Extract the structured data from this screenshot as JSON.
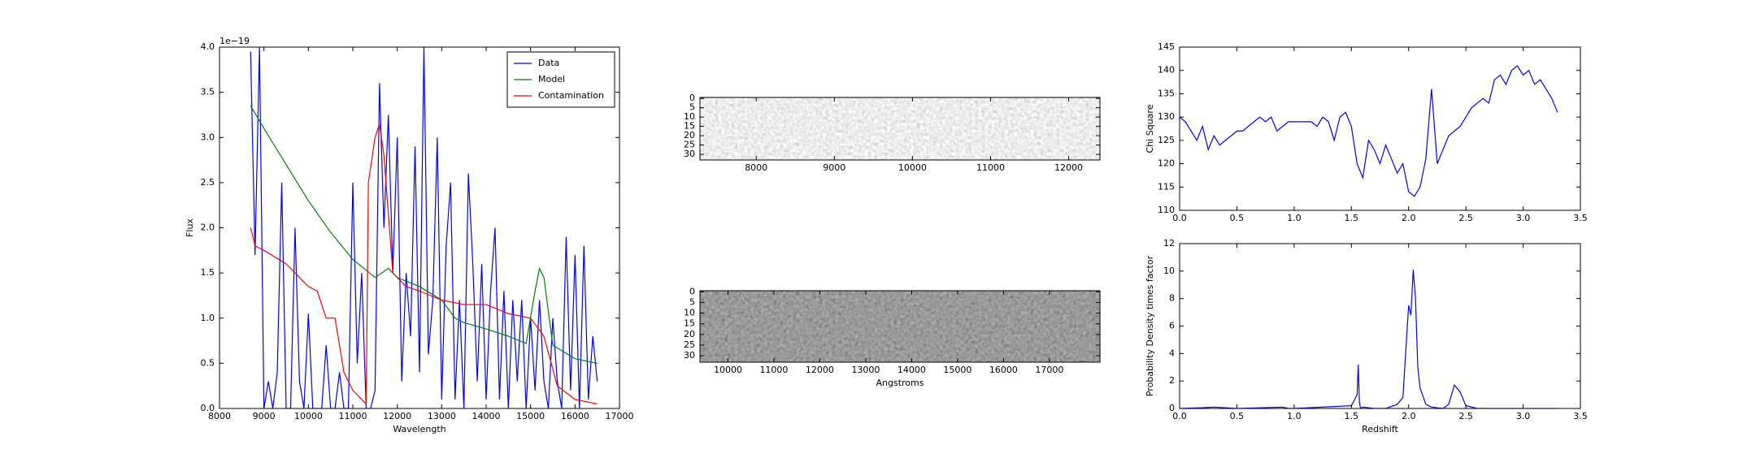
{
  "chart_data": [
    {
      "type": "line",
      "xlabel": "Wavelength",
      "ylabel": "Flux",
      "y_offset_label": "1e−19",
      "xlim": [
        8000,
        17000
      ],
      "xticks": [
        8000,
        9000,
        10000,
        11000,
        12000,
        13000,
        14000,
        15000,
        16000,
        17000
      ],
      "ylim": [
        0,
        4
      ],
      "yticks": [
        {
          "value": 0,
          "label": "0.0"
        },
        0.5,
        {
          "value": 1,
          "label": "1.0"
        },
        1.5,
        {
          "value": 2,
          "label": "2.0"
        },
        2.5,
        {
          "value": 3,
          "label": "3.0"
        },
        3.5,
        {
          "value": 4,
          "label": "4.0"
        }
      ],
      "legend": "upper right",
      "series": [
        {
          "name": "Data",
          "color": "#0000ff",
          "x": [
            8700,
            8800,
            8900,
            9000,
            9100,
            9200,
            9300,
            9400,
            9500,
            9600,
            9700,
            9800,
            9900,
            10000,
            10100,
            10200,
            10300,
            10400,
            10500,
            10600,
            10700,
            10800,
            10900,
            11000,
            11100,
            11200,
            11300,
            11400,
            11500,
            11600,
            11700,
            11800,
            11900,
            12000,
            12100,
            12200,
            12300,
            12400,
            12500,
            12600,
            12700,
            12800,
            12900,
            13000,
            13100,
            13200,
            13300,
            13400,
            13500,
            13600,
            13700,
            13800,
            13900,
            14000,
            14100,
            14200,
            14300,
            14400,
            14500,
            14600,
            14700,
            14800,
            14900,
            15000,
            15100,
            15200,
            15300,
            15400,
            15500,
            15600,
            15700,
            15800,
            15900,
            16000,
            16100,
            16200,
            16300,
            16400,
            16500
          ],
          "values": [
            3.95,
            1.7,
            4.0,
            0,
            0.3,
            0,
            0.4,
            2.5,
            0,
            0,
            2.0,
            0.3,
            0,
            1.05,
            0,
            0,
            0,
            0.7,
            0,
            0,
            0.4,
            0,
            0,
            2.5,
            0.5,
            1.5,
            0,
            0,
            0.2,
            3.6,
            2.0,
            3.25,
            1.5,
            3.0,
            0.3,
            1.5,
            0.8,
            2.9,
            0.4,
            4.0,
            0.6,
            1.2,
            3.0,
            0.1,
            1.8,
            2.5,
            0.1,
            1.2,
            0,
            2.6,
            1.6,
            0.3,
            1.6,
            0.1,
            1.3,
            2.0,
            0.1,
            1.3,
            0,
            1.2,
            0.3,
            1.2,
            0,
            1.0,
            0.2,
            1.2,
            0.3,
            0,
            1.0,
            0.3,
            0,
            1.9,
            0.2,
            1.7,
            0,
            1.8,
            0.1,
            0.8,
            0.3
          ]
        },
        {
          "name": "Model",
          "color": "#008000",
          "x": [
            8700,
            9000,
            9500,
            10000,
            10500,
            11000,
            11500,
            11800,
            12000,
            12500,
            13000,
            13300,
            13500,
            14000,
            14500,
            14900,
            15100,
            15200,
            15300,
            15500,
            16000,
            16500
          ],
          "values": [
            3.35,
            3.1,
            2.7,
            2.3,
            1.95,
            1.65,
            1.45,
            1.55,
            1.45,
            1.35,
            1.2,
            1.0,
            0.95,
            0.88,
            0.8,
            0.72,
            1.3,
            1.55,
            1.45,
            0.7,
            0.55,
            0.5
          ]
        },
        {
          "name": "Contamination",
          "color": "#ff0000",
          "x": [
            8700,
            8800,
            9000,
            9500,
            9800,
            10000,
            10200,
            10400,
            10600,
            10800,
            11000,
            11300,
            11350,
            11500,
            11600,
            11700,
            11900,
            12200,
            12500,
            13000,
            13500,
            14000,
            14500,
            15000,
            15300,
            15600,
            16000,
            16500
          ],
          "values": [
            2.0,
            1.8,
            1.75,
            1.6,
            1.45,
            1.35,
            1.3,
            1.0,
            1.0,
            0.4,
            0.2,
            0.05,
            2.5,
            3.0,
            3.15,
            2.8,
            1.5,
            1.35,
            1.3,
            1.2,
            1.15,
            1.15,
            1.05,
            1.0,
            0.8,
            0.25,
            0.1,
            0.05
          ]
        }
      ]
    },
    {
      "type": "image",
      "cmap": "gray-light",
      "xlim": [
        7280,
        12400
      ],
      "xticks": [
        8000,
        9000,
        10000,
        11000,
        12000
      ],
      "ylim": [
        33,
        -0.5
      ],
      "yticks": [
        0,
        5,
        10,
        15,
        20,
        25,
        30
      ]
    },
    {
      "type": "image",
      "cmap": "gray-dark",
      "xlabel": "Angstroms",
      "xlim": [
        9390,
        18100
      ],
      "xticks": [
        10000,
        11000,
        12000,
        13000,
        14000,
        15000,
        16000,
        17000
      ],
      "ylim": [
        33,
        -0.5
      ],
      "yticks": [
        0,
        5,
        10,
        15,
        20,
        25,
        30
      ]
    },
    {
      "type": "line",
      "ylabel": "Chi Square",
      "xlim": [
        0,
        3.5
      ],
      "xticks": [
        {
          "value": 0,
          "label": "0.0"
        },
        0.5,
        {
          "value": 1,
          "label": "1.0"
        },
        1.5,
        {
          "value": 2,
          "label": "2.0"
        },
        2.5,
        {
          "value": 3,
          "label": "3.0"
        },
        3.5
      ],
      "ylim": [
        110,
        145
      ],
      "yticks": [
        110,
        115,
        120,
        125,
        130,
        135,
        140,
        145
      ],
      "series": [
        {
          "color": "#0000ff",
          "x": [
            0,
            0.05,
            0.1,
            0.15,
            0.2,
            0.25,
            0.3,
            0.35,
            0.4,
            0.45,
            0.5,
            0.55,
            0.6,
            0.65,
            0.7,
            0.75,
            0.8,
            0.85,
            0.9,
            0.95,
            1.0,
            1.05,
            1.1,
            1.15,
            1.2,
            1.25,
            1.3,
            1.35,
            1.4,
            1.45,
            1.5,
            1.55,
            1.6,
            1.65,
            1.7,
            1.75,
            1.8,
            1.85,
            1.9,
            1.95,
            2.0,
            2.05,
            2.1,
            2.15,
            2.2,
            2.25,
            2.3,
            2.35,
            2.4,
            2.45,
            2.5,
            2.55,
            2.6,
            2.65,
            2.7,
            2.75,
            2.8,
            2.85,
            2.9,
            2.95,
            3.0,
            3.05,
            3.1,
            3.15,
            3.2,
            3.25,
            3.3
          ],
          "values": [
            130,
            129,
            127,
            125,
            128,
            123,
            126,
            124,
            125,
            126,
            127,
            127,
            128,
            129,
            130,
            129,
            130,
            127,
            128,
            129,
            129,
            129,
            129,
            129,
            128,
            130,
            129,
            125,
            130,
            131,
            128,
            120,
            117,
            125,
            123,
            120,
            124,
            121,
            118,
            120,
            114,
            113,
            115,
            121,
            136,
            120,
            123,
            126,
            127,
            128,
            130,
            132,
            133,
            134,
            133,
            138,
            139,
            137,
            140,
            141,
            139,
            140,
            137,
            138,
            136,
            134,
            131
          ]
        }
      ]
    },
    {
      "type": "line",
      "xlabel": "Redshift",
      "ylabel": "Probability Density times factor",
      "xlim": [
        0,
        3.5
      ],
      "xticks": [
        {
          "value": 0,
          "label": "0.0"
        },
        0.5,
        {
          "value": 1,
          "label": "1.0"
        },
        1.5,
        {
          "value": 2,
          "label": "2.0"
        },
        2.5,
        {
          "value": 3,
          "label": "3.0"
        },
        3.5
      ],
      "ylim": [
        0,
        12
      ],
      "yticks": [
        0,
        2,
        4,
        6,
        8,
        10,
        12
      ],
      "series": [
        {
          "color": "#0000ff",
          "x": [
            0,
            0.2,
            0.3,
            0.5,
            0.9,
            0.95,
            1.0,
            1.5,
            1.55,
            1.56,
            1.57,
            1.58,
            1.6,
            1.7,
            1.8,
            1.9,
            1.95,
            2.0,
            2.02,
            2.04,
            2.06,
            2.08,
            2.1,
            2.15,
            2.2,
            2.3,
            2.35,
            2.4,
            2.45,
            2.5,
            2.6,
            3.3
          ],
          "values": [
            0,
            0.05,
            0.1,
            0,
            0.1,
            0,
            0,
            0.2,
            1.0,
            3.2,
            0.5,
            0,
            0.1,
            0,
            0,
            0.3,
            0.8,
            7.5,
            6.8,
            10.1,
            8,
            3,
            1.5,
            0.3,
            0.1,
            0,
            0.3,
            1.7,
            1.2,
            0.2,
            0,
            0
          ]
        }
      ]
    }
  ]
}
